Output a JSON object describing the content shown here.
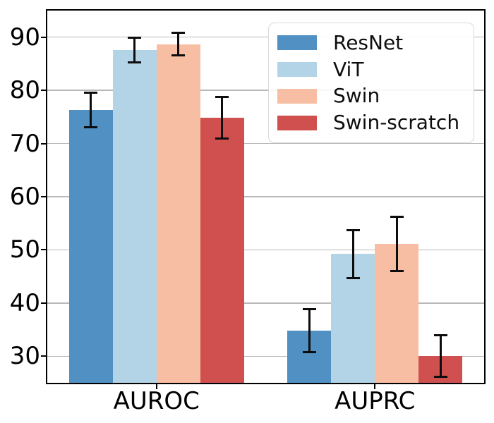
{
  "chart_data": {
    "type": "bar",
    "title": "",
    "xlabel": "",
    "ylabel": "",
    "categories": [
      "AUROC",
      "AUPRC"
    ],
    "series": [
      {
        "name": "ResNet",
        "color": "#5090C2",
        "values": [
          76.3,
          34.8
        ],
        "errors": [
          3.3,
          4.0
        ]
      },
      {
        "name": "ViT",
        "color": "#B3D4E6",
        "values": [
          87.6,
          49.2
        ],
        "errors": [
          2.3,
          4.5
        ]
      },
      {
        "name": "Swin",
        "color": "#F8BEA4",
        "values": [
          88.7,
          51.1
        ],
        "errors": [
          2.1,
          5.1
        ]
      },
      {
        "name": "Swin-scratch",
        "color": "#D05050",
        "values": [
          74.9,
          30.0
        ],
        "errors": [
          3.9,
          3.9
        ]
      }
    ],
    "ylim": [
      25,
      95
    ],
    "yticks": [
      30,
      40,
      50,
      60,
      70,
      80,
      90
    ],
    "grid": true,
    "grid_axis": "y",
    "error_bars": true,
    "legend": {
      "position": "upper-right",
      "entries": [
        "ResNet",
        "ViT",
        "Swin",
        "Swin-scratch"
      ]
    },
    "colors": {
      "grid": "#b9b9b9",
      "spine": "#000000",
      "errorbar": "#0d0d0d",
      "background": "#ffffff",
      "legend_border": "#d8d8d8",
      "text": "#000000"
    }
  }
}
